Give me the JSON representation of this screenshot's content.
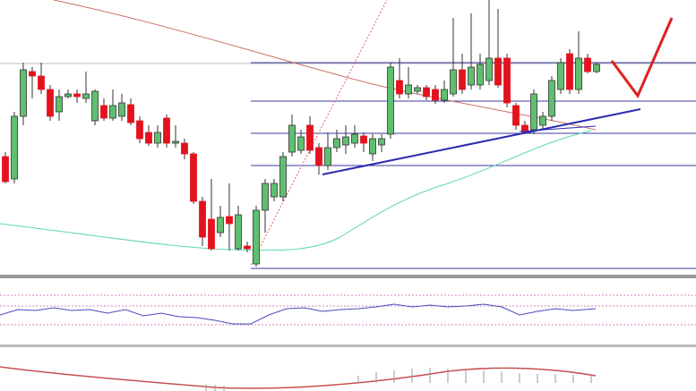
{
  "chart_data": {
    "type": "candlestick",
    "ylim": [
      0,
      300
    ],
    "up_color": "#5fbf6f",
    "down_color": "#e3121c",
    "open": [
      125,
      100,
      170,
      220,
      215,
      200,
      175,
      192,
      195,
      190,
      165,
      182,
      168,
      170,
      183,
      165,
      152,
      140,
      168,
      140,
      140,
      128,
      75,
      55,
      40,
      58,
      22,
      25,
      5,
      65,
      80,
      80,
      130,
      132,
      160,
      135,
      115,
      135,
      138,
      140,
      148,
      128,
      138,
      150,
      210,
      195,
      198,
      202,
      200,
      188,
      195,
      222,
      205,
      205,
      210,
      235,
      235,
      182,
      160,
      155,
      160,
      170,
      200,
      240,
      200,
      235,
      220
    ],
    "high": [
      130,
      175,
      230,
      225,
      230,
      205,
      200,
      200,
      200,
      220,
      200,
      190,
      200,
      195,
      190,
      170,
      160,
      160,
      172,
      160,
      145,
      130,
      80,
      100,
      70,
      95,
      70,
      30,
      70,
      100,
      100,
      130,
      172,
      155,
      170,
      140,
      152,
      155,
      160,
      160,
      152,
      150,
      150,
      230,
      235,
      225,
      205,
      205,
      205,
      210,
      280,
      240,
      285,
      240,
      300,
      290,
      240,
      185,
      165,
      200,
      175,
      215,
      235,
      245,
      265,
      240,
      230
    ],
    "low": [
      95,
      95,
      160,
      190,
      195,
      165,
      165,
      190,
      185,
      185,
      160,
      165,
      165,
      165,
      160,
      140,
      137,
      135,
      135,
      135,
      122,
      72,
      25,
      20,
      35,
      20,
      20,
      18,
      2,
      40,
      75,
      75,
      125,
      128,
      128,
      105,
      110,
      130,
      128,
      135,
      130,
      120,
      130,
      145,
      190,
      190,
      195,
      188,
      184,
      185,
      192,
      195,
      200,
      200,
      205,
      202,
      180,
      155,
      150,
      150,
      155,
      165,
      195,
      195,
      195,
      218,
      218
    ],
    "close": [
      97,
      170,
      222,
      215,
      200,
      170,
      192,
      195,
      192,
      195,
      198,
      168,
      182,
      185,
      163,
      145,
      140,
      152,
      140,
      142,
      128,
      75,
      35,
      22,
      57,
      50,
      60,
      22,
      65,
      95,
      95,
      125,
      160,
      147,
      132,
      115,
      135,
      145,
      147,
      150,
      140,
      145,
      145,
      225,
      195,
      205,
      202,
      192,
      188,
      200,
      222,
      200,
      225,
      228,
      235,
      205,
      185,
      160,
      152,
      195,
      170,
      210,
      230,
      200,
      235,
      220,
      228
    ]
  }
}
